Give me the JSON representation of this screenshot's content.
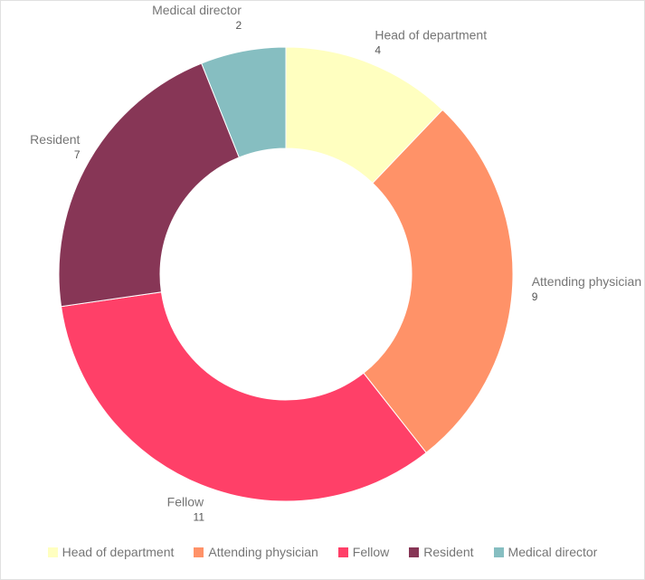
{
  "chart_data": {
    "type": "pie",
    "variant": "donut",
    "title": "",
    "categories": [
      "Head of department",
      "Attending physician",
      "Fellow",
      "Resident",
      "Medical director"
    ],
    "values": [
      4,
      9,
      11,
      7,
      2
    ],
    "colors": [
      "#ffffc0",
      "#ff9268",
      "#ff4068",
      "#873656",
      "#86bec1"
    ],
    "legend_position": "bottom",
    "start_angle_deg": 0,
    "direction": "clockwise"
  }
}
